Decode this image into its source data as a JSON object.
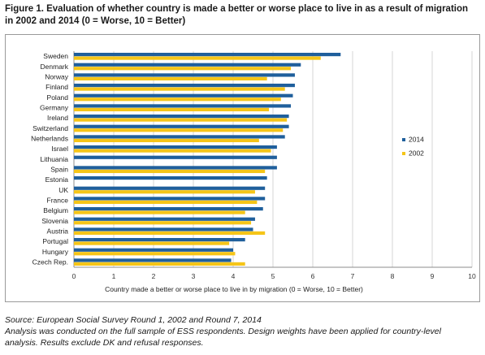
{
  "figure": {
    "title_line1": "Figure 1. Evaluation of whether country is made a better or worse place to live in as a result of migration",
    "title_line2": "in 2002 and 2014 (0 = Worse, 10 = Better)"
  },
  "notes": {
    "source": "Source: European Social Survey Round 1, 2002 and Round 7, 2014",
    "line2": "Analysis was conducted on the full sample of ESS respondents. Design weights have been applied for country-level",
    "line3": "analysis. Results exclude DK and refusal responses."
  },
  "chart_data": {
    "type": "bar",
    "orientation": "horizontal",
    "xlabel": "Country made a better or worse place to live in by migration (0 = Worse, 10 = Better)",
    "xlim": [
      0,
      10
    ],
    "x_ticks": [
      "0",
      "1",
      "2",
      "3",
      "4",
      "5",
      "6",
      "7",
      "8",
      "9",
      "10"
    ],
    "grid": true,
    "legend_position": "right",
    "categories": [
      "Sweden",
      "Denmark",
      "Norway",
      "Finland",
      "Poland",
      "Germany",
      "Ireland",
      "Switzerland",
      "Netherlands",
      "Israel",
      "Lithuania",
      "Spain",
      "Estonia",
      "UK",
      "France",
      "Belgium",
      "Slovenia",
      "Austria",
      "Portugal",
      "Hungary",
      "Czech Rep."
    ],
    "series": [
      {
        "name": "2014",
        "color": "#1f5f9c",
        "values": [
          6.7,
          5.7,
          5.55,
          5.55,
          5.5,
          5.45,
          5.4,
          5.4,
          5.3,
          5.1,
          5.1,
          5.1,
          4.85,
          4.8,
          4.8,
          4.75,
          4.55,
          4.5,
          4.3,
          4.0,
          3.95
        ]
      },
      {
        "name": "2002",
        "color": "#f5c518",
        "values": [
          6.2,
          5.45,
          4.85,
          5.3,
          5.2,
          4.9,
          5.35,
          5.25,
          4.65,
          4.95,
          null,
          4.8,
          null,
          4.55,
          4.6,
          4.3,
          4.45,
          4.8,
          3.9,
          4.05,
          4.3
        ]
      }
    ]
  }
}
